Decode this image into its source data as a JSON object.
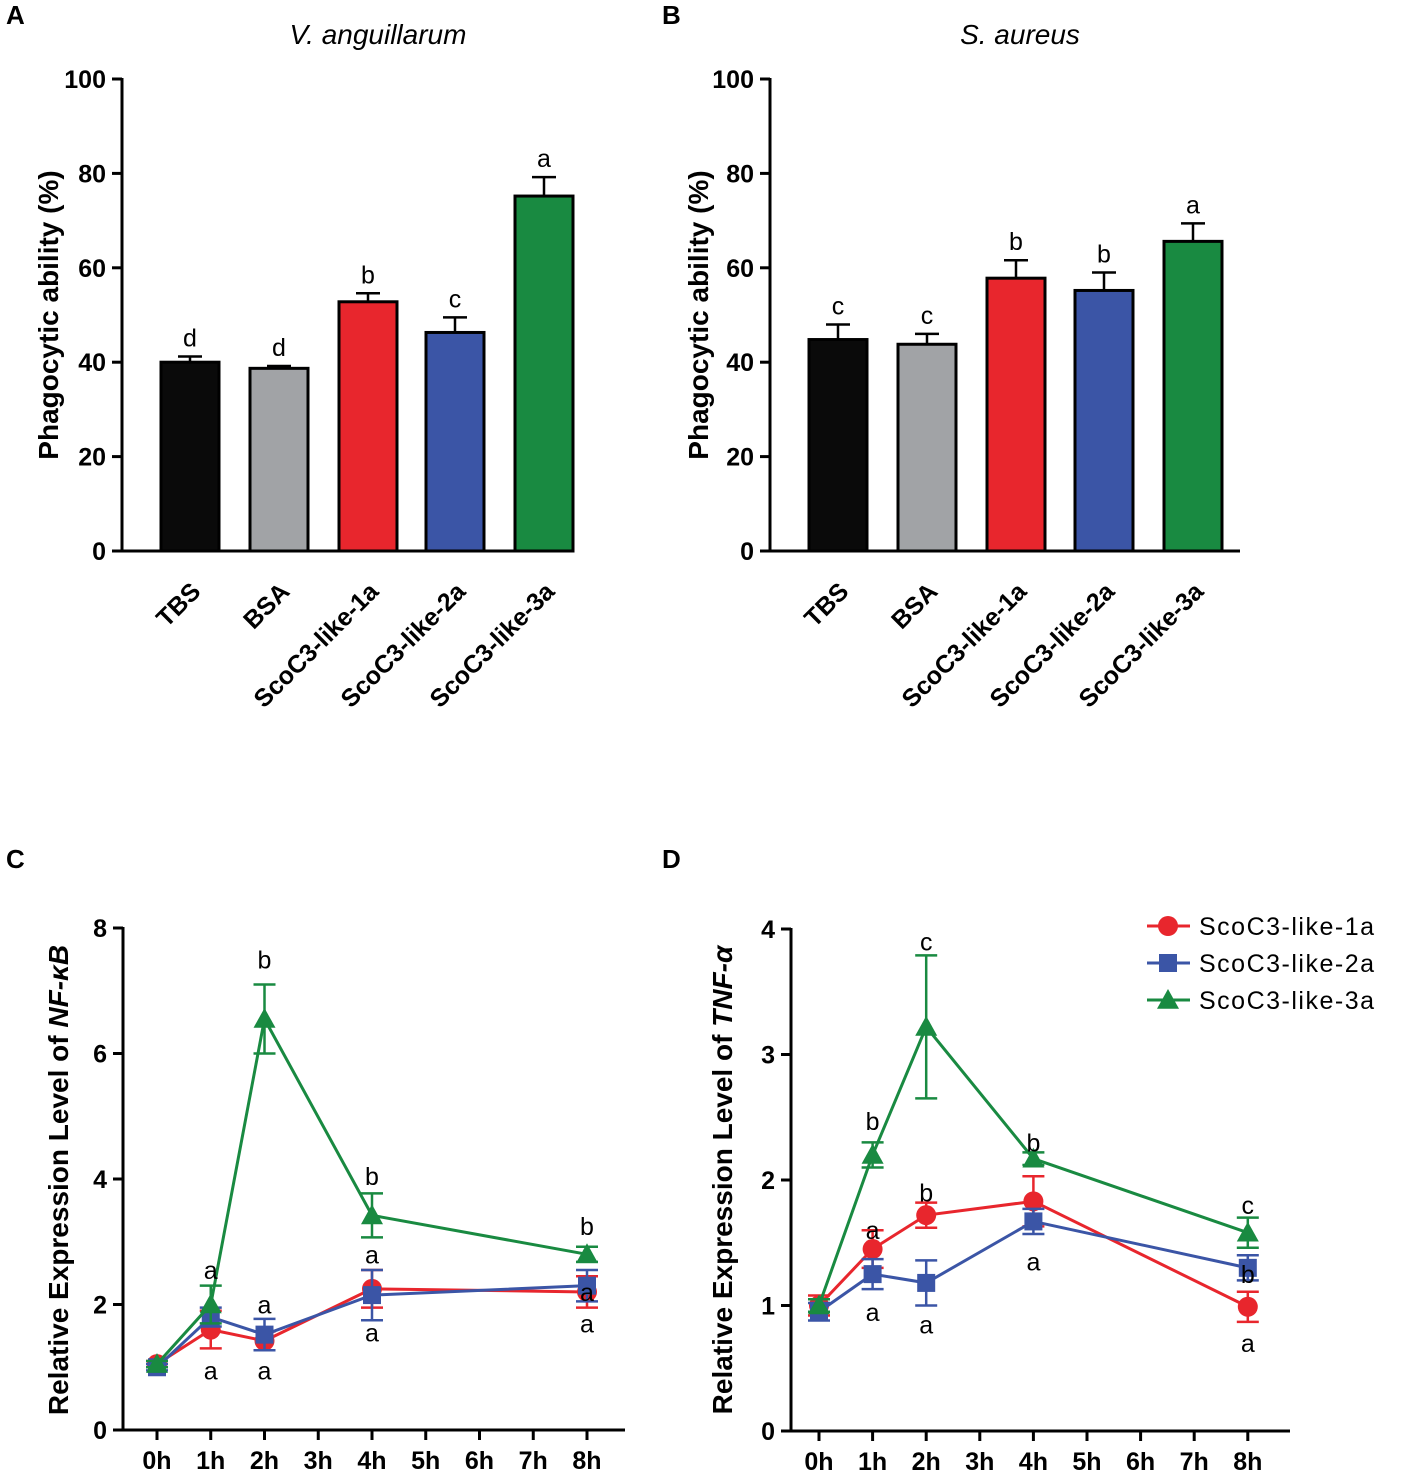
{
  "colors": {
    "red": "#e8262d",
    "blue": "#3b55a6",
    "green": "#198a41",
    "black": "#000000",
    "gray": "#a1a3a6"
  },
  "chart_data": [
    {
      "panel": "A",
      "type": "bar",
      "title": "V. anguillarum",
      "ylabel": "Phagocytic ability (%)",
      "ylim": [
        0,
        100
      ],
      "yticks": [
        0,
        20,
        40,
        60,
        80,
        100
      ],
      "categories": [
        "TBS",
        "BSA",
        "ScoC3-like-1a",
        "ScoC3-like-2a",
        "ScoC3-like-3a"
      ],
      "values": [
        40,
        38.7,
        52.8,
        46.3,
        75.2
      ],
      "errors": [
        1.2,
        0.5,
        1.8,
        3.2,
        4.0
      ],
      "significance": [
        "d",
        "d",
        "b",
        "c",
        "a"
      ],
      "bar_colors": [
        "#0a0a0a",
        "#a1a3a6",
        "#e8262d",
        "#3b55a6",
        "#198a41"
      ]
    },
    {
      "panel": "B",
      "type": "bar",
      "title": "S. aureus",
      "ylabel": "Phagocytic ability (%)",
      "ylim": [
        0,
        100
      ],
      "yticks": [
        0,
        20,
        40,
        60,
        80,
        100
      ],
      "categories": [
        "TBS",
        "BSA",
        "ScoC3-like-1a",
        "ScoC3-like-2a",
        "ScoC3-like-3a"
      ],
      "values": [
        44.8,
        43.8,
        57.8,
        55.2,
        65.6
      ],
      "errors": [
        3.2,
        2.2,
        3.8,
        3.8,
        3.8
      ],
      "significance": [
        "c",
        "c",
        "b",
        "b",
        "a"
      ],
      "bar_colors": [
        "#0a0a0a",
        "#a1a3a6",
        "#e8262d",
        "#3b55a6",
        "#198a41"
      ]
    },
    {
      "panel": "C",
      "type": "line",
      "ylabel_prefix": "Relative Expression Level of ",
      "ylabel_gene": "NF-κB",
      "ylim": [
        0,
        8
      ],
      "yticks": [
        0,
        2,
        4,
        6,
        8
      ],
      "x": [
        0,
        1,
        2,
        3,
        4,
        5,
        6,
        7,
        8
      ],
      "xtick_labels": [
        "0h",
        "1h",
        "2h",
        "3h",
        "4h",
        "5h",
        "6h",
        "7h",
        "8h"
      ],
      "series": [
        {
          "name": "ScoC3-like-1a",
          "marker": "circle",
          "x": [
            0,
            1,
            2,
            4,
            8
          ],
          "y": [
            1.05,
            1.6,
            1.42,
            2.25,
            2.2
          ],
          "err": [
            0.05,
            0.3,
            0.15,
            0.3,
            0.25
          ]
        },
        {
          "name": "ScoC3-like-2a",
          "marker": "square",
          "x": [
            0,
            1,
            2,
            4,
            8
          ],
          "y": [
            1.0,
            1.8,
            1.52,
            2.15,
            2.3
          ],
          "err": [
            0.05,
            0.15,
            0.25,
            0.4,
            0.25
          ]
        },
        {
          "name": "ScoC3-like-3a",
          "marker": "triangle",
          "x": [
            0,
            1,
            2,
            4,
            8
          ],
          "y": [
            1.05,
            2.0,
            6.55,
            3.42,
            2.8
          ],
          "err": [
            0.05,
            0.3,
            0.55,
            0.35,
            0.12
          ]
        }
      ],
      "annotations": [
        {
          "x": 1,
          "y": 2.55,
          "text": "a"
        },
        {
          "x": 1,
          "y": 0.95,
          "text": "a"
        },
        {
          "x": 2,
          "y": 2.0,
          "text": "a"
        },
        {
          "x": 2,
          "y": 0.95,
          "text": "a"
        },
        {
          "x": 2,
          "y": 7.5,
          "text": "b"
        },
        {
          "x": 4,
          "y": 4.05,
          "text": "b"
        },
        {
          "x": 4,
          "y": 2.8,
          "text": "a"
        },
        {
          "x": 4,
          "y": 1.55,
          "text": "a"
        },
        {
          "x": 8,
          "y": 3.25,
          "text": "b"
        },
        {
          "x": 8,
          "y": 2.2,
          "text": "a"
        },
        {
          "x": 8,
          "y": 1.7,
          "text": "a"
        }
      ]
    },
    {
      "panel": "D",
      "type": "line",
      "ylabel_prefix": "Relative Expression Level of ",
      "ylabel_gene": "TNF-α",
      "ylim": [
        0,
        4
      ],
      "yticks": [
        0,
        1,
        2,
        3,
        4
      ],
      "x": [
        0,
        1,
        2,
        3,
        4,
        5,
        6,
        7,
        8
      ],
      "xtick_labels": [
        "0h",
        "1h",
        "2h",
        "3h",
        "4h",
        "5h",
        "6h",
        "7h",
        "8h"
      ],
      "series": [
        {
          "name": "ScoC3-like-1a",
          "marker": "circle",
          "x": [
            0,
            1,
            2,
            4,
            8
          ],
          "y": [
            1.0,
            1.45,
            1.72,
            1.83,
            0.99
          ],
          "err": [
            0.08,
            0.15,
            0.1,
            0.2,
            0.12
          ]
        },
        {
          "name": "ScoC3-like-2a",
          "marker": "square",
          "x": [
            0,
            1,
            2,
            4,
            8
          ],
          "y": [
            0.95,
            1.25,
            1.18,
            1.67,
            1.3
          ],
          "err": [
            0.07,
            0.12,
            0.18,
            0.1,
            0.1
          ]
        },
        {
          "name": "ScoC3-like-3a",
          "marker": "triangle",
          "x": [
            0,
            1,
            2,
            4,
            8
          ],
          "y": [
            1.0,
            2.2,
            3.22,
            2.17,
            1.58
          ],
          "err": [
            0.05,
            0.1,
            0.57,
            0.05,
            0.12
          ]
        }
      ],
      "annotations": [
        {
          "x": 1,
          "y": 2.47,
          "text": "b"
        },
        {
          "x": 1,
          "y": 1.6,
          "text": "a"
        },
        {
          "x": 1,
          "y": 0.95,
          "text": "a"
        },
        {
          "x": 2,
          "y": 3.9,
          "text": "c"
        },
        {
          "x": 2,
          "y": 1.9,
          "text": "b"
        },
        {
          "x": 2,
          "y": 0.85,
          "text": "a"
        },
        {
          "x": 4,
          "y": 2.3,
          "text": "b"
        },
        {
          "x": 4,
          "y": 1.35,
          "text": "a"
        },
        {
          "x": 8,
          "y": 1.8,
          "text": "c"
        },
        {
          "x": 8,
          "y": 1.25,
          "text": "b"
        },
        {
          "x": 8,
          "y": 0.7,
          "text": "a"
        }
      ],
      "legend": {
        "position": "top-right",
        "entries": [
          {
            "name": "ScoC3-like-1a",
            "marker": "circle"
          },
          {
            "name": "ScoC3-like-2a",
            "marker": "square"
          },
          {
            "name": "ScoC3-like-3a",
            "marker": "triangle"
          }
        ]
      }
    }
  ]
}
